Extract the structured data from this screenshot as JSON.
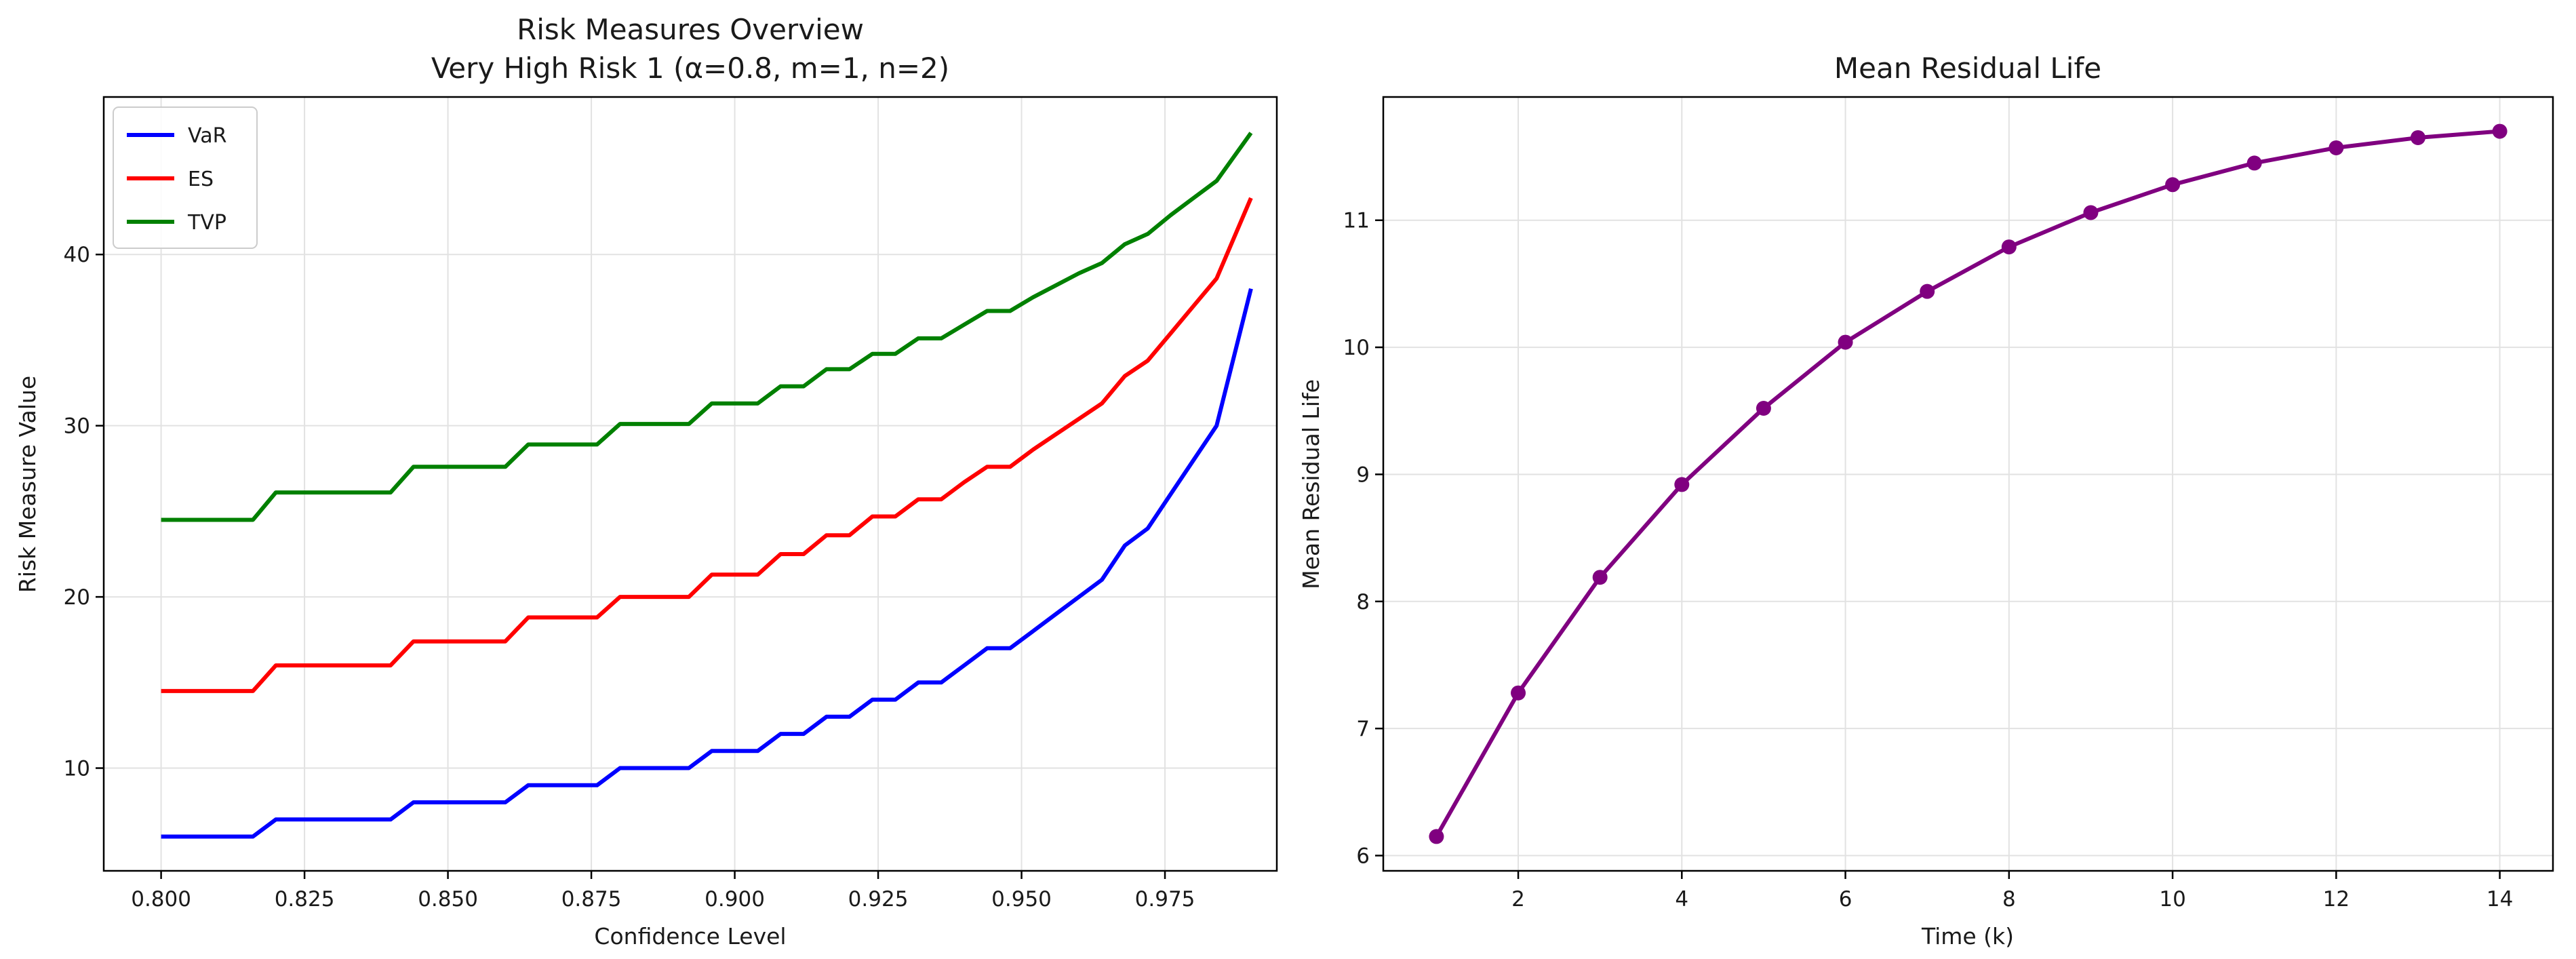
{
  "chart_data": [
    {
      "type": "line",
      "title": "Risk Measures Overview",
      "subtitle": "Very High Risk 1 (α=0.8, m=1, n=2)",
      "xlabel": "Confidence Level",
      "ylabel": "Risk Measure Value",
      "xlim": [
        0.79,
        0.9945
      ],
      "ylim": [
        4.0,
        49.2
      ],
      "xticks": [
        0.8,
        0.825,
        0.85,
        0.875,
        0.9,
        0.925,
        0.95,
        0.975
      ],
      "xtick_labels": [
        "0.800",
        "0.825",
        "0.850",
        "0.875",
        "0.900",
        "0.925",
        "0.950",
        "0.975"
      ],
      "yticks": [
        10,
        20,
        30,
        40
      ],
      "ytick_labels": [
        "10",
        "20",
        "30",
        "40"
      ],
      "grid": true,
      "legend": "top-left",
      "x": [
        0.8,
        0.804,
        0.808,
        0.812,
        0.816,
        0.82,
        0.824,
        0.828,
        0.832,
        0.836,
        0.84,
        0.844,
        0.848,
        0.852,
        0.856,
        0.86,
        0.864,
        0.868,
        0.872,
        0.876,
        0.88,
        0.884,
        0.888,
        0.892,
        0.896,
        0.9,
        0.904,
        0.908,
        0.912,
        0.916,
        0.92,
        0.924,
        0.928,
        0.932,
        0.936,
        0.94,
        0.944,
        0.948,
        0.952,
        0.956,
        0.96,
        0.964,
        0.968,
        0.972,
        0.976,
        0.98,
        0.984,
        0.99
      ],
      "series": [
        {
          "name": "VaR",
          "color": "#0000ff",
          "values": [
            6,
            6,
            6,
            6,
            6,
            7,
            7,
            7,
            7,
            7,
            7,
            8,
            8,
            8,
            8,
            8,
            9,
            9,
            9,
            9,
            10,
            10,
            10,
            10,
            11,
            11,
            11,
            12,
            12,
            13,
            13,
            14,
            14,
            15,
            15,
            16,
            17,
            17,
            18,
            19,
            20,
            21,
            23,
            24,
            26,
            28,
            30,
            38
          ]
        },
        {
          "name": "ES",
          "color": "#ff0000",
          "values": [
            14.5,
            14.5,
            14.5,
            14.5,
            14.5,
            16.0,
            16.0,
            16.0,
            16.0,
            16.0,
            16.0,
            17.4,
            17.4,
            17.4,
            17.4,
            17.4,
            18.8,
            18.8,
            18.8,
            18.8,
            20.0,
            20.0,
            20.0,
            20.0,
            21.3,
            21.3,
            21.3,
            22.5,
            22.5,
            23.6,
            23.6,
            24.7,
            24.7,
            25.7,
            25.7,
            26.7,
            27.6,
            27.6,
            28.6,
            29.5,
            30.4,
            31.3,
            32.9,
            33.8,
            35.4,
            37.0,
            38.6,
            43.3
          ]
        },
        {
          "name": "TVP",
          "color": "#008000",
          "values": [
            24.5,
            24.5,
            24.5,
            24.5,
            24.5,
            26.1,
            26.1,
            26.1,
            26.1,
            26.1,
            26.1,
            27.6,
            27.6,
            27.6,
            27.6,
            27.6,
            28.9,
            28.9,
            28.9,
            28.9,
            30.1,
            30.1,
            30.1,
            30.1,
            31.3,
            31.3,
            31.3,
            32.3,
            32.3,
            33.3,
            33.3,
            34.2,
            34.2,
            35.1,
            35.1,
            35.9,
            36.7,
            36.7,
            37.5,
            38.2,
            38.9,
            39.5,
            40.6,
            41.2,
            42.3,
            43.3,
            44.3,
            47.1
          ]
        }
      ]
    },
    {
      "type": "line",
      "title": "Mean Residual Life",
      "xlabel": "Time (k)",
      "ylabel": "Mean Residual Life",
      "xlim": [
        0.35,
        14.65
      ],
      "ylim": [
        5.88,
        11.97
      ],
      "xticks": [
        2,
        4,
        6,
        8,
        10,
        12,
        14
      ],
      "xtick_labels": [
        "2",
        "4",
        "6",
        "8",
        "10",
        "12",
        "14"
      ],
      "yticks": [
        6,
        7,
        8,
        9,
        10,
        11
      ],
      "ytick_labels": [
        "6",
        "7",
        "8",
        "9",
        "10",
        "11"
      ],
      "grid": true,
      "markers": true,
      "x": [
        1,
        2,
        3,
        4,
        5,
        6,
        7,
        8,
        9,
        10,
        11,
        12,
        13,
        14
      ],
      "series": [
        {
          "color": "#800080",
          "values": [
            6.15,
            7.28,
            8.19,
            8.92,
            9.52,
            10.04,
            10.44,
            10.79,
            11.06,
            11.28,
            11.45,
            11.57,
            11.65,
            11.7
          ]
        }
      ]
    }
  ]
}
